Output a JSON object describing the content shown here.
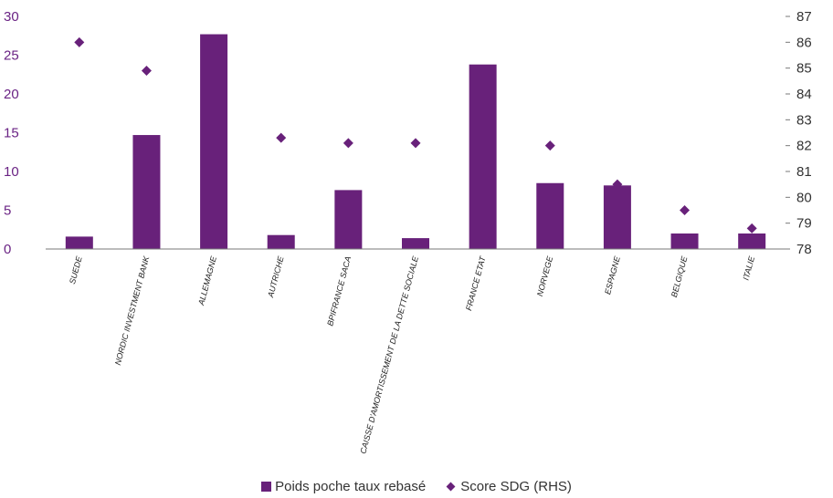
{
  "chart_data": {
    "type": "bar",
    "categories": [
      "SUEDE",
      "NORDIC INVESTMENT BANK",
      "ALLEMAGNE",
      "AUTRICHE",
      "BPIFRANCE SACA",
      "CAISSE D'AMORTISSEMENT DE LA DETTE SOCIALE",
      "FRANCE ETAT",
      "NORVEGE",
      "ESPAGNE",
      "BELGIQUE",
      "ITALIE"
    ],
    "series": [
      {
        "name": "Poids poche taux rebasé",
        "type": "bar",
        "axis": "left",
        "color": "#68217a",
        "values": [
          1.6,
          14.7,
          27.7,
          1.8,
          7.6,
          1.4,
          23.8,
          8.5,
          8.2,
          2.0,
          2.0
        ]
      },
      {
        "name": "Score SDG (RHS)",
        "type": "scatter",
        "marker": "diamond",
        "axis": "right",
        "color": "#68217a",
        "values": [
          86.0,
          84.9,
          null,
          82.3,
          82.1,
          82.1,
          null,
          82.0,
          80.5,
          79.5,
          78.8
        ]
      }
    ],
    "y_left": {
      "min": 0,
      "max": 30,
      "ticks": [
        0,
        5,
        10,
        15,
        20,
        25,
        30
      ]
    },
    "y_right": {
      "min": 78,
      "max": 87,
      "ticks": [
        78,
        79,
        80,
        81,
        82,
        83,
        84,
        85,
        86,
        87
      ]
    },
    "grid": false,
    "legend_position": "bottom"
  }
}
